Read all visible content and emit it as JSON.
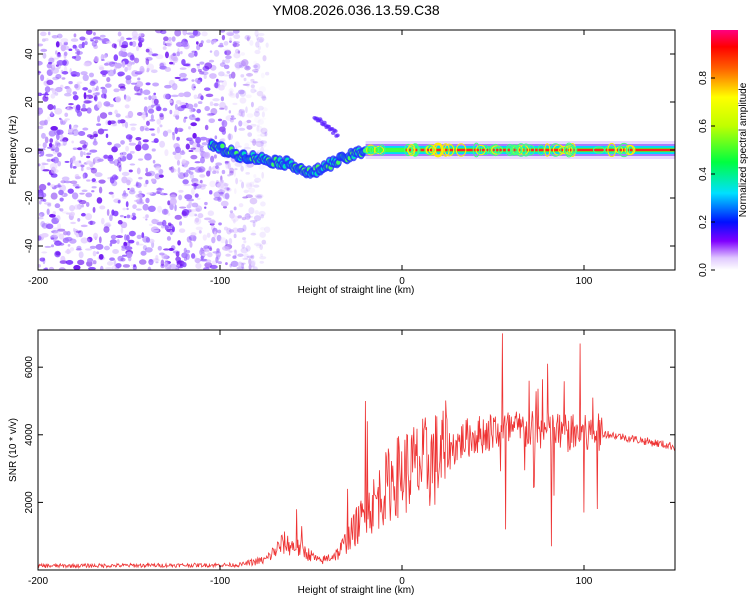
{
  "title": "YM08.2026.036.13.59.C38",
  "chart_data": [
    {
      "type": "heatmap",
      "xlabel": "Height of straight line (km)",
      "ylabel": "Frequency (Hz)",
      "xlim": [
        -200,
        150
      ],
      "ylim": [
        -50,
        50
      ],
      "xticks": [
        -200,
        -100,
        0,
        100
      ],
      "yticks": [
        -40,
        -20,
        0,
        20,
        40
      ],
      "colorbar": {
        "label": "Normalized spectral amplitude",
        "range": [
          0,
          1
        ],
        "ticks": [
          0.0,
          0.2,
          0.4,
          0.6,
          0.8
        ]
      },
      "features": {
        "noise_region_km": [
          -200,
          -80
        ],
        "descending_trace": {
          "x_km": [
            -105,
            -90,
            -75,
            -60,
            -50,
            -40,
            -30,
            -20
          ],
          "y_hz": [
            2,
            -2,
            -4,
            -6,
            -10,
            -6,
            -3,
            0
          ]
        },
        "faint_upper_trace": {
          "x_km": [
            -48,
            -35
          ],
          "y_hz": [
            14,
            6
          ]
        },
        "steady_line_hz": 0,
        "steady_line_km": [
          -20,
          150
        ]
      }
    },
    {
      "type": "line",
      "xlabel": "Height of straight line (km)",
      "ylabel": "SNR (10 * v/v)",
      "xlim": [
        -200,
        150
      ],
      "ylim": [
        0,
        7100
      ],
      "xticks": [
        -200,
        -100,
        0,
        100
      ],
      "yticks": [
        2000,
        4000,
        6000
      ],
      "color": "#ee3333",
      "anchors": {
        "x": [
          -200,
          -90,
          -75,
          -65,
          -55,
          -45,
          -35,
          -25,
          -15,
          -5,
          5,
          20,
          35,
          50,
          60,
          80,
          100,
          110,
          120,
          135,
          150
        ],
        "y": [
          120,
          150,
          300,
          800,
          600,
          250,
          500,
          1300,
          2000,
          2700,
          3000,
          3300,
          3900,
          4100,
          4150,
          4100,
          4000,
          4050,
          3950,
          3800,
          3650
        ]
      },
      "spikes": {
        "x": [
          -58,
          -55,
          -30,
          -20,
          -19,
          55,
          57,
          70,
          80,
          82,
          98,
          100,
          105
        ],
        "y": [
          1800,
          1300,
          2400,
          5000,
          4400,
          7000,
          1200,
          5600,
          6100,
          700,
          6700,
          1700,
          5100
        ]
      }
    }
  ]
}
